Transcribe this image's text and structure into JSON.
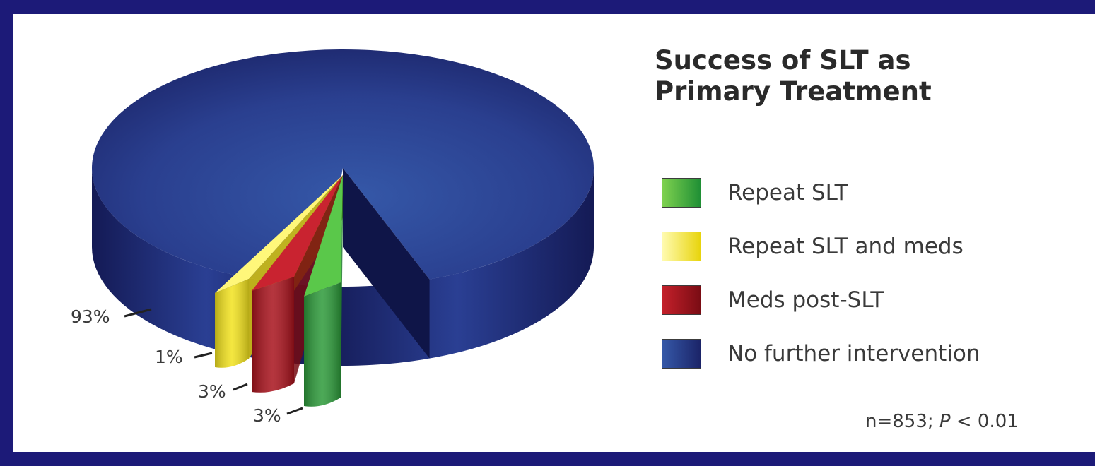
{
  "chart_data": {
    "type": "pie",
    "title": "Success of SLT as Primary Treatment",
    "title_lines": [
      "Success of SLT as",
      "Primary Treatment"
    ],
    "categories": [
      "Repeat SLT",
      "Repeat SLT and meds",
      "Meds post-SLT",
      "No further intervention"
    ],
    "values": [
      3,
      1,
      3,
      93
    ],
    "value_labels": [
      "3%",
      "1%",
      "3%",
      "93%"
    ],
    "colors": [
      "#3aa83c",
      "#f2e21e",
      "#b3141e",
      "#2a3f8f"
    ],
    "legend": "right",
    "note": {
      "prefix": "n=853; ",
      "italic": "P",
      "suffix": " < 0.01"
    }
  }
}
